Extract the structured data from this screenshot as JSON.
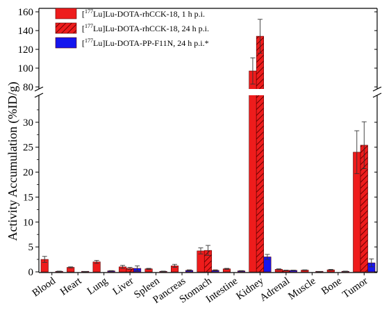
{
  "chart_data": {
    "type": "bar",
    "ylabel": "Activity Accumulation (%ID/g)",
    "xlabel": "",
    "title": "",
    "axis_break": {
      "lower_range": [
        0,
        35
      ],
      "upper_range": [
        80,
        160
      ]
    },
    "lower_ticks": [
      0,
      5,
      10,
      15,
      20,
      25,
      30
    ],
    "upper_ticks": [
      80,
      100,
      120,
      140,
      160
    ],
    "categories": [
      "Blood",
      "Heart",
      "Lung",
      "Liver",
      "Spleen",
      "Pancreas",
      "Stomach",
      "Intestine",
      "Kidney",
      "Adrenal",
      "Muscle",
      "Bone",
      "Tumor"
    ],
    "series": [
      {
        "name_pre": "[",
        "name_sup": "177",
        "name_post": "Lu]Lu-DOTA-rhCCK-18, 1 h p.i.",
        "color": "#ee1c1c",
        "hatched": false,
        "values": [
          2.5,
          0.9,
          2.0,
          1.0,
          0.6,
          1.2,
          4.2,
          0.6,
          97,
          0.5,
          0.35,
          0.4,
          24.0
        ],
        "errors": [
          0.6,
          0.1,
          0.3,
          0.3,
          0.1,
          0.3,
          0.6,
          0.1,
          14,
          0.1,
          0.05,
          0.1,
          4.3
        ]
      },
      {
        "name_pre": "[",
        "name_sup": "177",
        "name_post": "Lu]Lu-DOTA-rhCCK-18, 24 h p.i.",
        "color": "#ee1c1c",
        "hatched": true,
        "values": [
          null,
          null,
          null,
          0.7,
          null,
          null,
          4.3,
          null,
          134,
          0.3,
          null,
          null,
          25.4
        ],
        "errors": [
          null,
          null,
          null,
          0.2,
          null,
          null,
          1.0,
          null,
          18,
          0.05,
          null,
          null,
          4.7
        ]
      },
      {
        "name_pre": "[",
        "name_sup": "177",
        "name_post": "Lu]Lu-DOTA-PP-F11N, 24 h p.i.*",
        "color": "#1515ee",
        "hatched": false,
        "values": [
          0.1,
          0.05,
          0.2,
          0.7,
          0.1,
          0.3,
          0.3,
          0.2,
          3.0,
          0.3,
          0.05,
          0.1,
          1.8
        ],
        "errors": [
          0.05,
          0.02,
          0.05,
          0.5,
          0.05,
          0.1,
          0.1,
          0.05,
          0.5,
          0.05,
          0.02,
          0.05,
          0.8
        ]
      }
    ]
  }
}
